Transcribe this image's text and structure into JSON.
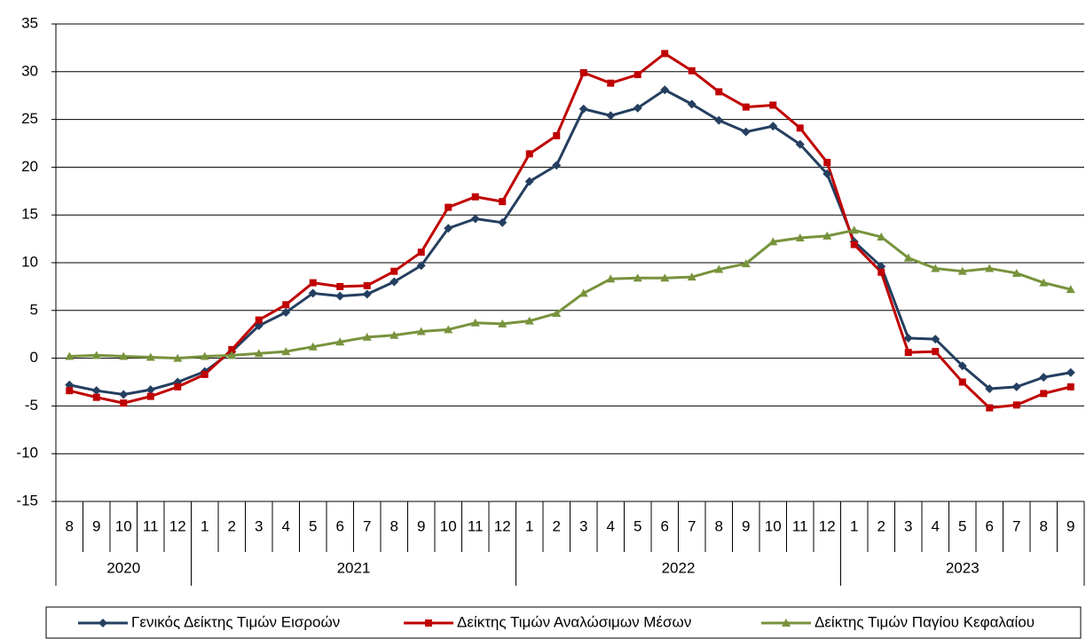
{
  "chart_data": {
    "type": "line",
    "year_groups": [
      {
        "label": "2020",
        "months": [
          "8",
          "9",
          "10",
          "11",
          "12"
        ]
      },
      {
        "label": "2021",
        "months": [
          "1",
          "2",
          "3",
          "4",
          "5",
          "6",
          "7",
          "8",
          "9",
          "10",
          "11",
          "12"
        ]
      },
      {
        "label": "2022",
        "months": [
          "1",
          "2",
          "3",
          "4",
          "5",
          "6",
          "7",
          "8",
          "9",
          "10",
          "11",
          "12"
        ]
      },
      {
        "label": "2023",
        "months": [
          "1",
          "2",
          "3",
          "4",
          "5",
          "6",
          "7",
          "8",
          "9"
        ]
      }
    ],
    "series": [
      {
        "name": "Γενικός Δείκτης Τιμών Εισροών",
        "color": "#243f60",
        "marker": "diamond",
        "values": [
          -2.8,
          -3.4,
          -3.8,
          -3.3,
          -2.5,
          -1.4,
          0.7,
          3.4,
          4.8,
          6.8,
          6.5,
          6.7,
          8.0,
          9.7,
          13.6,
          14.6,
          14.2,
          18.5,
          20.2,
          26.1,
          25.4,
          26.2,
          28.1,
          26.6,
          24.9,
          23.7,
          24.3,
          22.4,
          19.3,
          12.2,
          9.6,
          2.1,
          2.0,
          -0.8,
          -3.2,
          -3.0,
          -2.0,
          -1.5
        ]
      },
      {
        "name": "Δείκτης Τιμών Αναλώσιμων Μέσων",
        "color": "#c00000",
        "marker": "square",
        "values": [
          -3.4,
          -4.1,
          -4.7,
          -4.0,
          -3.0,
          -1.7,
          0.9,
          4.0,
          5.6,
          7.9,
          7.5,
          7.6,
          9.1,
          11.1,
          15.8,
          16.9,
          16.4,
          21.4,
          23.3,
          29.9,
          28.8,
          29.7,
          31.9,
          30.1,
          27.9,
          26.3,
          26.5,
          24.1,
          20.5,
          11.9,
          9.0,
          0.6,
          0.7,
          -2.5,
          -5.2,
          -4.9,
          -3.7,
          -3.0
        ]
      },
      {
        "name": "Δείκτης Τιμών Παγίου Κεφαλαίου",
        "color": "#77933c",
        "marker": "triangle",
        "values": [
          0.2,
          0.3,
          0.2,
          0.1,
          0.0,
          0.2,
          0.3,
          0.5,
          0.7,
          1.2,
          1.7,
          2.2,
          2.4,
          2.8,
          3.0,
          3.7,
          3.6,
          3.9,
          4.7,
          6.8,
          8.3,
          8.4,
          8.4,
          8.5,
          9.3,
          9.9,
          12.2,
          12.6,
          12.8,
          13.4,
          12.7,
          10.5,
          9.4,
          9.1,
          9.4,
          8.9,
          7.9,
          7.2
        ]
      }
    ],
    "ylim": [
      -15,
      35
    ],
    "yticks": [
      -15,
      -10,
      -5,
      0,
      5,
      10,
      15,
      20,
      25,
      30,
      35
    ],
    "grid": true,
    "legend": "bottom"
  }
}
